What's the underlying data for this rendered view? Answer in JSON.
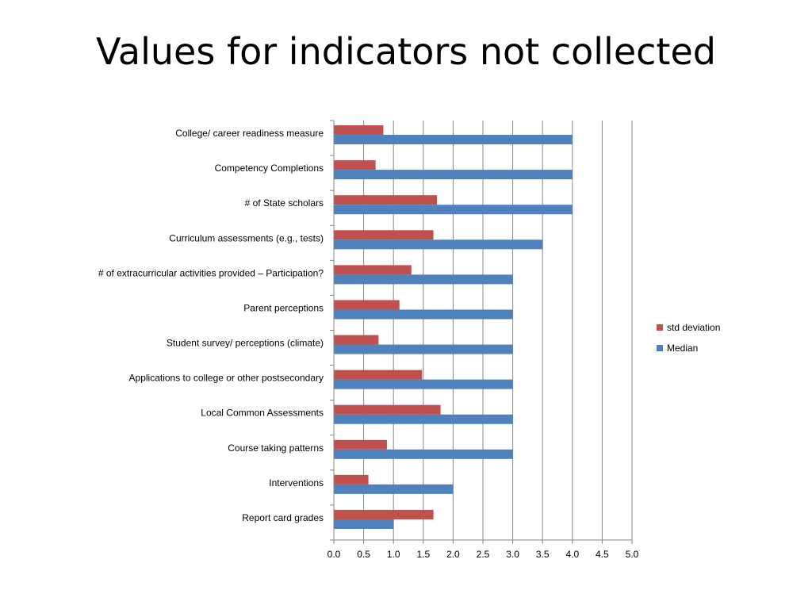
{
  "slide": {
    "title": "Values for indicators not collected"
  },
  "chart_data": {
    "type": "bar",
    "orientation": "horizontal",
    "categories": [
      "College/ career readiness measure",
      "Competency Completions",
      "# of State scholars",
      "Curriculum assessments (e.g., tests)",
      "# of extracurricular activities provided – Participation?",
      "Parent perceptions",
      "Student survey/ perceptions (climate)",
      "Applications to college or other postsecondary",
      "Local Common Assessments",
      "Course taking patterns",
      "Interventions",
      "Report card grades"
    ],
    "series": [
      {
        "name": "std deviation",
        "color": "#c0504d",
        "values": [
          0.83,
          0.7,
          1.73,
          1.67,
          1.3,
          1.1,
          0.75,
          1.48,
          1.79,
          0.89,
          0.58,
          1.67
        ]
      },
      {
        "name": "Median",
        "color": "#4f81bd",
        "values": [
          4.0,
          4.0,
          4.0,
          3.5,
          3.0,
          3.0,
          3.0,
          3.0,
          3.0,
          3.0,
          2.0,
          1.0
        ]
      }
    ],
    "x_ticks": [
      "0.0",
      "0.5",
      "1.0",
      "1.5",
      "2.0",
      "2.5",
      "3.0",
      "3.5",
      "4.0",
      "4.5",
      "5.0"
    ],
    "xlim": [
      0,
      5
    ],
    "grid": "vertical",
    "legend": "right",
    "xlabel": "",
    "ylabel": ""
  }
}
